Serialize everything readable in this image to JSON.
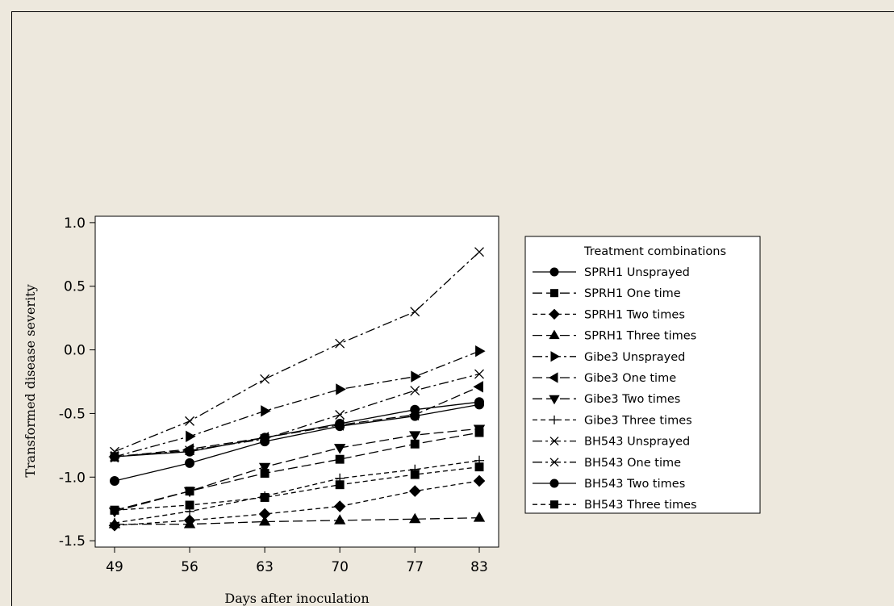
{
  "chart_data": {
    "type": "line",
    "title": "",
    "xlabel": "Days after inoculation",
    "ylabel": "Transformed disease severity",
    "x": [
      49,
      56,
      63,
      70,
      77,
      83
    ],
    "xticks": [
      "49",
      "56",
      "63",
      "70",
      "77",
      "83"
    ],
    "yticks": [
      "1.0",
      "0.5",
      "0.0",
      "-0.5",
      "-1.0",
      "-1.5"
    ],
    "ytick_values": [
      1.0,
      0.5,
      0.0,
      -0.5,
      -1.0,
      -1.5
    ],
    "ylim": [
      -1.55,
      1.05
    ],
    "grid": false,
    "legend_position": "right",
    "legend_title": "Treatment combinations",
    "series": [
      {
        "name": "SPRH1 Unsprayed",
        "marker": "circle",
        "dash": "solid",
        "values": [
          -0.84,
          -0.8,
          -0.69,
          -0.58,
          -0.47,
          -0.41
        ]
      },
      {
        "name": "SPRH1 One time",
        "marker": "square",
        "dash": "longdash",
        "values": [
          -1.26,
          -1.11,
          -0.97,
          -0.86,
          -0.74,
          -0.65
        ]
      },
      {
        "name": "SPRH1 Two times",
        "marker": "diamond",
        "dash": "dash",
        "values": [
          -1.38,
          -1.34,
          -1.29,
          -1.23,
          -1.11,
          -1.03
        ]
      },
      {
        "name": "SPRH1 Three times",
        "marker": "triangle-up",
        "dash": "longdash",
        "values": [
          -1.37,
          -1.37,
          -1.35,
          -1.34,
          -1.33,
          -1.32
        ]
      },
      {
        "name": "Gibe3 Unsprayed",
        "marker": "triangle-right",
        "dash": "dashdot",
        "values": [
          -0.84,
          -0.68,
          -0.48,
          -0.31,
          -0.21,
          -0.01
        ]
      },
      {
        "name": "Gibe3 One time",
        "marker": "triangle-left",
        "dash": "longdash",
        "values": [
          -0.84,
          -0.78,
          -0.69,
          -0.59,
          -0.51,
          -0.29
        ]
      },
      {
        "name": "Gibe3 Two times",
        "marker": "triangle-down",
        "dash": "longdash",
        "values": [
          -1.27,
          -1.11,
          -0.92,
          -0.77,
          -0.67,
          -0.62
        ]
      },
      {
        "name": "Gibe3 Three times",
        "marker": "plus",
        "dash": "dash",
        "values": [
          -1.36,
          -1.27,
          -1.15,
          -1.01,
          -0.94,
          -0.87
        ]
      },
      {
        "name": "BH543 Unsprayed",
        "marker": "x",
        "dash": "dashdot",
        "values": [
          -0.8,
          -0.56,
          -0.23,
          0.05,
          0.3,
          0.77
        ]
      },
      {
        "name": "BH543 One time",
        "marker": "x",
        "dash": "dashdot",
        "values": [
          -0.84,
          -0.79,
          -0.7,
          -0.51,
          -0.32,
          -0.19
        ]
      },
      {
        "name": "BH543 Two times",
        "marker": "circle",
        "dash": "solid",
        "values": [
          -1.03,
          -0.89,
          -0.72,
          -0.6,
          -0.52,
          -0.43
        ]
      },
      {
        "name": "BH543 Three times",
        "marker": "square",
        "dash": "dash",
        "values": [
          -1.26,
          -1.22,
          -1.16,
          -1.06,
          -0.98,
          -0.92
        ]
      }
    ]
  }
}
